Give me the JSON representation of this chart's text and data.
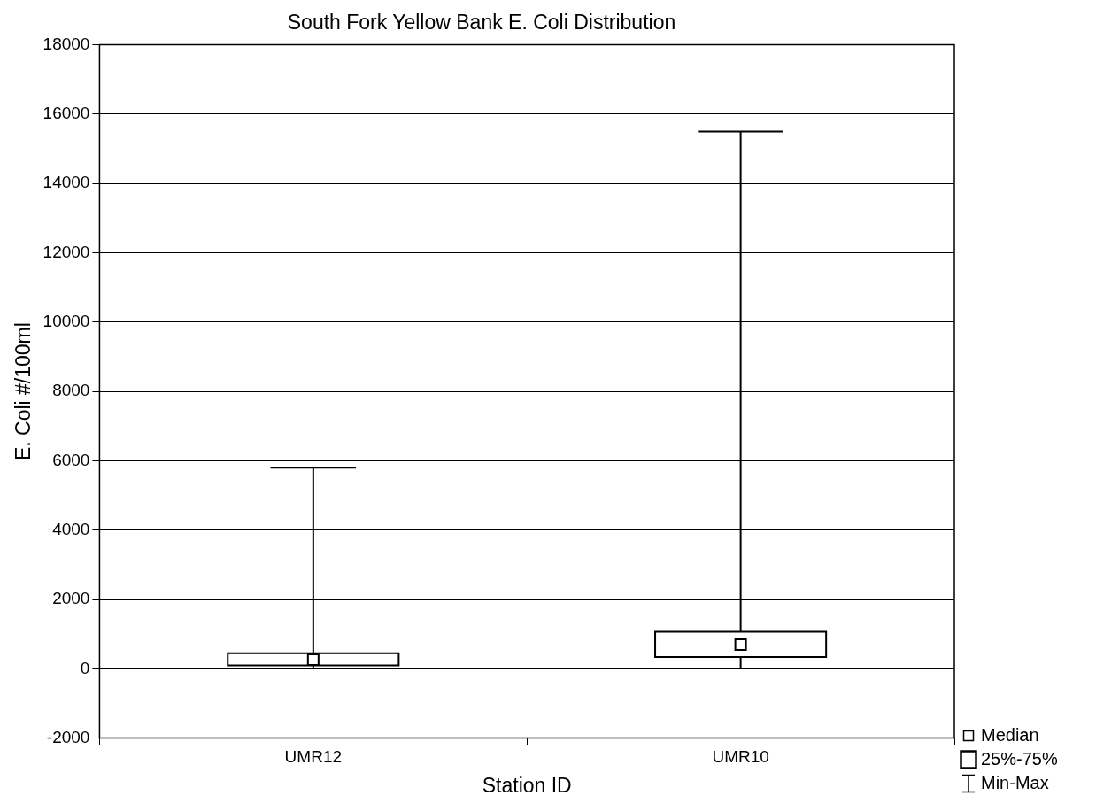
{
  "chart_data": {
    "type": "box",
    "title": "South Fork Yellow Bank E. Coli Distribution",
    "xlabel": "Station ID",
    "ylabel": "E. Coli #/100ml",
    "categories": [
      "UMR12",
      "UMR10"
    ],
    "boxes": [
      {
        "low": 10,
        "q1": 100,
        "median": 260,
        "q3": 450,
        "high": 5800
      },
      {
        "low": 10,
        "q1": 340,
        "median": 700,
        "q3": 1070,
        "high": 15500
      }
    ],
    "color": "#000000",
    "ylim": [
      -2000,
      18000
    ],
    "yticks": [
      -2000,
      0,
      2000,
      4000,
      6000,
      8000,
      10000,
      12000,
      14000,
      16000,
      18000
    ],
    "grid": "y",
    "annotations": [
      "Median",
      "25%-75%",
      "Min-Max"
    ]
  }
}
